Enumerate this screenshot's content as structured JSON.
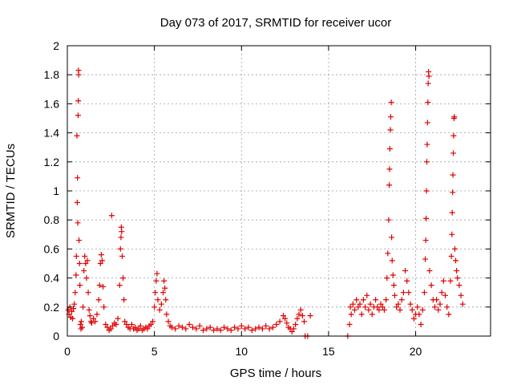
{
  "chart_data": {
    "type": "scatter",
    "title": "Day 073 of 2017, SRMTID for receiver ucor",
    "xlabel": "GPS time / hours",
    "ylabel": "SRMTID / TECUs",
    "xlim": [
      0,
      24.3
    ],
    "ylim": [
      0,
      2
    ],
    "xticks": [
      0,
      5,
      10,
      15,
      20
    ],
    "xtick_labels": [
      "0",
      "5",
      "10",
      "15",
      "20"
    ],
    "yticks": [
      0,
      0.2,
      0.4,
      0.6,
      0.8,
      1,
      1.2,
      1.4,
      1.6,
      1.8,
      2
    ],
    "ytick_labels": [
      "0",
      "0.2",
      "0.4",
      "0.6",
      "0.8",
      "1",
      "1.2",
      "1.4",
      "1.6",
      "1.8",
      "2"
    ],
    "grid": true,
    "marker": "+",
    "color": "#e00000",
    "series": [
      {
        "name": "SRMTID",
        "points": [
          [
            0.05,
            0.18
          ],
          [
            0.1,
            0.15
          ],
          [
            0.15,
            0.2
          ],
          [
            0.2,
            0.13
          ],
          [
            0.25,
            0.17
          ],
          [
            0.3,
            0.12
          ],
          [
            0.35,
            0.19
          ],
          [
            0.4,
            0.22
          ],
          [
            0.45,
            0.3
          ],
          [
            0.5,
            0.42
          ],
          [
            0.52,
            0.55
          ],
          [
            0.55,
            1.38
          ],
          [
            0.57,
            0.92
          ],
          [
            0.58,
            1.09
          ],
          [
            0.6,
            0.78
          ],
          [
            0.62,
            1.52
          ],
          [
            0.63,
            1.62
          ],
          [
            0.64,
            1.83
          ],
          [
            0.65,
            1.8
          ],
          [
            0.67,
            0.66
          ],
          [
            0.7,
            0.5
          ],
          [
            0.72,
            0.35
          ],
          [
            0.75,
            0.08
          ],
          [
            0.78,
            0.05
          ],
          [
            0.8,
            0.1
          ],
          [
            0.85,
            0.06
          ],
          [
            0.9,
            0.2
          ],
          [
            0.95,
            0.45
          ],
          [
            1.0,
            0.55
          ],
          [
            1.05,
            0.5
          ],
          [
            1.1,
            0.4
          ],
          [
            1.15,
            0.52
          ],
          [
            1.2,
            0.3
          ],
          [
            1.25,
            0.18
          ],
          [
            1.3,
            0.14
          ],
          [
            1.35,
            0.1
          ],
          [
            1.4,
            0.09
          ],
          [
            1.5,
            0.12
          ],
          [
            1.6,
            0.1
          ],
          [
            1.7,
            0.15
          ],
          [
            1.8,
            0.25
          ],
          [
            1.85,
            0.35
          ],
          [
            1.9,
            0.5
          ],
          [
            1.95,
            0.56
          ],
          [
            2.0,
            0.52
          ],
          [
            2.05,
            0.34
          ],
          [
            2.1,
            0.2
          ],
          [
            2.2,
            0.08
          ],
          [
            2.3,
            0.06
          ],
          [
            2.4,
            0.04
          ],
          [
            2.5,
            0.05
          ],
          [
            2.55,
            0.83
          ],
          [
            2.6,
            0.07
          ],
          [
            2.7,
            0.09
          ],
          [
            2.8,
            0.08
          ],
          [
            2.9,
            0.12
          ],
          [
            3.0,
            0.35
          ],
          [
            3.05,
            0.6
          ],
          [
            3.08,
            0.68
          ],
          [
            3.1,
            0.75
          ],
          [
            3.12,
            0.72
          ],
          [
            3.15,
            0.55
          ],
          [
            3.2,
            0.4
          ],
          [
            3.25,
            0.25
          ],
          [
            3.3,
            0.1
          ],
          [
            3.4,
            0.08
          ],
          [
            3.5,
            0.06
          ],
          [
            3.6,
            0.05
          ],
          [
            3.7,
            0.08
          ],
          [
            3.8,
            0.05
          ],
          [
            3.9,
            0.06
          ],
          [
            4.0,
            0.04
          ],
          [
            4.1,
            0.05
          ],
          [
            4.2,
            0.07
          ],
          [
            4.3,
            0.04
          ],
          [
            4.4,
            0.05
          ],
          [
            4.5,
            0.06
          ],
          [
            4.6,
            0.05
          ],
          [
            4.7,
            0.07
          ],
          [
            4.8,
            0.08
          ],
          [
            4.9,
            0.1
          ],
          [
            5.0,
            0.2
          ],
          [
            5.05,
            0.3
          ],
          [
            5.1,
            0.38
          ],
          [
            5.15,
            0.43
          ],
          [
            5.2,
            0.25
          ],
          [
            5.3,
            0.18
          ],
          [
            5.4,
            0.22
          ],
          [
            5.5,
            0.3
          ],
          [
            5.55,
            0.38
          ],
          [
            5.6,
            0.33
          ],
          [
            5.65,
            0.25
          ],
          [
            5.7,
            0.15
          ],
          [
            5.8,
            0.1
          ],
          [
            5.9,
            0.07
          ],
          [
            6.0,
            0.06
          ],
          [
            6.2,
            0.05
          ],
          [
            6.4,
            0.07
          ],
          [
            6.6,
            0.06
          ],
          [
            6.8,
            0.05
          ],
          [
            7.0,
            0.08
          ],
          [
            7.2,
            0.06
          ],
          [
            7.4,
            0.05
          ],
          [
            7.6,
            0.07
          ],
          [
            7.8,
            0.04
          ],
          [
            8.0,
            0.05
          ],
          [
            8.2,
            0.06
          ],
          [
            8.4,
            0.04
          ],
          [
            8.6,
            0.05
          ],
          [
            8.8,
            0.04
          ],
          [
            9.0,
            0.06
          ],
          [
            9.2,
            0.05
          ],
          [
            9.4,
            0.04
          ],
          [
            9.6,
            0.06
          ],
          [
            9.8,
            0.05
          ],
          [
            10.0,
            0.07
          ],
          [
            10.2,
            0.05
          ],
          [
            10.4,
            0.06
          ],
          [
            10.6,
            0.04
          ],
          [
            10.8,
            0.05
          ],
          [
            11.0,
            0.06
          ],
          [
            11.2,
            0.05
          ],
          [
            11.4,
            0.07
          ],
          [
            11.6,
            0.05
          ],
          [
            11.8,
            0.06
          ],
          [
            12.0,
            0.08
          ],
          [
            12.2,
            0.1
          ],
          [
            12.4,
            0.14
          ],
          [
            12.5,
            0.12
          ],
          [
            12.6,
            0.09
          ],
          [
            12.7,
            0.06
          ],
          [
            12.8,
            0.05
          ],
          [
            12.9,
            0.03
          ],
          [
            13.0,
            0.05
          ],
          [
            13.1,
            0.08
          ],
          [
            13.2,
            0.12
          ],
          [
            13.3,
            0.15
          ],
          [
            13.4,
            0.18
          ],
          [
            13.5,
            0.14
          ],
          [
            13.6,
            0.1
          ],
          [
            13.65,
            0.0
          ],
          [
            13.8,
            0.0
          ],
          [
            13.95,
            0.14
          ],
          [
            16.1,
            0.0
          ],
          [
            16.2,
            0.08
          ],
          [
            16.25,
            0.2
          ],
          [
            16.3,
            0.15
          ],
          [
            16.4,
            0.22
          ],
          [
            16.5,
            0.18
          ],
          [
            16.6,
            0.25
          ],
          [
            16.7,
            0.2
          ],
          [
            16.8,
            0.22
          ],
          [
            16.9,
            0.15
          ],
          [
            17.0,
            0.25
          ],
          [
            17.1,
            0.2
          ],
          [
            17.2,
            0.28
          ],
          [
            17.3,
            0.18
          ],
          [
            17.4,
            0.22
          ],
          [
            17.5,
            0.15
          ],
          [
            17.6,
            0.2
          ],
          [
            17.7,
            0.25
          ],
          [
            17.8,
            0.2
          ],
          [
            17.9,
            0.18
          ],
          [
            18.0,
            0.22
          ],
          [
            18.1,
            0.2
          ],
          [
            18.2,
            0.18
          ],
          [
            18.3,
            0.25
          ],
          [
            18.35,
            0.4
          ],
          [
            18.4,
            0.57
          ],
          [
            18.45,
            0.8
          ],
          [
            18.48,
            1.04
          ],
          [
            18.5,
            1.15
          ],
          [
            18.52,
            1.29
          ],
          [
            18.55,
            1.42
          ],
          [
            18.57,
            1.51
          ],
          [
            18.6,
            1.61
          ],
          [
            18.62,
            0.68
          ],
          [
            18.65,
            0.52
          ],
          [
            18.7,
            0.42
          ],
          [
            18.75,
            0.35
          ],
          [
            18.8,
            0.28
          ],
          [
            18.9,
            0.2
          ],
          [
            19.0,
            0.22
          ],
          [
            19.1,
            0.18
          ],
          [
            19.2,
            0.25
          ],
          [
            19.3,
            0.3
          ],
          [
            19.4,
            0.45
          ],
          [
            19.5,
            0.38
          ],
          [
            19.6,
            0.3
          ],
          [
            19.7,
            0.22
          ],
          [
            19.8,
            0.18
          ],
          [
            19.9,
            0.12
          ],
          [
            20.0,
            0.15
          ],
          [
            20.1,
            0.2
          ],
          [
            20.2,
            0.15
          ],
          [
            20.3,
            0.08
          ],
          [
            20.4,
            0.18
          ],
          [
            20.5,
            0.3
          ],
          [
            20.55,
            0.53
          ],
          [
            20.58,
            0.66
          ],
          [
            20.6,
            0.81
          ],
          [
            20.62,
            1.0
          ],
          [
            20.64,
            1.2
          ],
          [
            20.66,
            1.32
          ],
          [
            20.68,
            1.47
          ],
          [
            20.7,
            1.61
          ],
          [
            20.72,
            1.74
          ],
          [
            20.74,
            1.82
          ],
          [
            20.76,
            1.79
          ],
          [
            20.8,
            0.45
          ],
          [
            20.9,
            0.35
          ],
          [
            21.0,
            0.25
          ],
          [
            21.1,
            0.2
          ],
          [
            21.2,
            0.25
          ],
          [
            21.3,
            0.18
          ],
          [
            21.4,
            0.22
          ],
          [
            21.5,
            0.3
          ],
          [
            21.6,
            0.38
          ],
          [
            21.7,
            0.28
          ],
          [
            21.8,
            0.2
          ],
          [
            21.9,
            0.15
          ],
          [
            22.0,
            0.38
          ],
          [
            22.05,
            0.55
          ],
          [
            22.08,
            0.7
          ],
          [
            22.1,
            0.85
          ],
          [
            22.12,
            0.99
          ],
          [
            22.14,
            1.11
          ],
          [
            22.16,
            1.26
          ],
          [
            22.18,
            1.38
          ],
          [
            22.2,
            1.5
          ],
          [
            22.22,
            1.51
          ],
          [
            22.25,
            0.6
          ],
          [
            22.3,
            0.52
          ],
          [
            22.35,
            0.45
          ],
          [
            22.4,
            0.4
          ],
          [
            22.5,
            0.35
          ],
          [
            22.6,
            0.28
          ],
          [
            22.7,
            0.22
          ]
        ]
      }
    ]
  }
}
